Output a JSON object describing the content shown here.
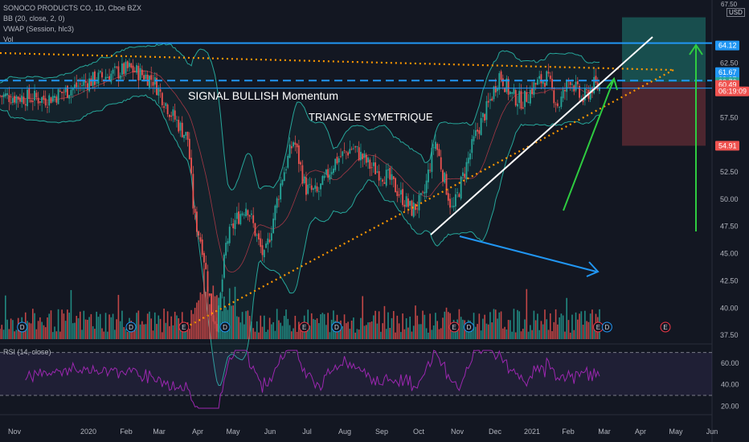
{
  "header": {
    "symbol": "SONOCO PRODUCTS CO, 1D, Cboe BZX",
    "indicators": [
      "BB (20, close, 2, 0)",
      "VWAP (Session, hlc3)",
      "Vol"
    ],
    "currency": "USD"
  },
  "annotations": {
    "signal": "SIGNAL BULLISH Momentum",
    "pattern": "TRIANGLE SYMETRIQUE"
  },
  "rsi": {
    "label": "RSI (14, close)",
    "ticks": [
      "60.00",
      "40.00",
      "20.00"
    ]
  },
  "colors": {
    "background": "#131722",
    "up": "#26a69a",
    "down": "#ef5350",
    "bb": "#26a69a",
    "basis": "#e04050",
    "blue_line": "#2196f3",
    "orange_dots": "#ff9800",
    "green_arrow": "#2ecc40",
    "rsi": "#9c27b0",
    "target_zone": "#1a5c5a",
    "stop_zone": "#5c2a33"
  },
  "chart_data": {
    "type": "candlestick",
    "title": "SONOCO PRODUCTS CO, 1D, Cboe BZX",
    "x_axis_labels": [
      "Nov",
      "2020",
      "Feb",
      "Mar",
      "Apr",
      "May",
      "Jun",
      "Jul",
      "Aug",
      "Sep",
      "Oct",
      "Nov",
      "Dec",
      "2021",
      "Feb",
      "Mar",
      "Apr",
      "May",
      "Jun"
    ],
    "y_axis_ticks": [
      "67.50",
      "62.50",
      "57.50",
      "55.00",
      "52.50",
      "50.00",
      "47.50",
      "45.00",
      "42.50",
      "40.00",
      "37.50"
    ],
    "ylim": [
      37,
      68
    ],
    "price_labels": [
      {
        "value": 64.12,
        "text": "64.12",
        "color": "#2196f3"
      },
      {
        "value": 61.67,
        "text": "61.67",
        "color": "#2196f3"
      },
      {
        "value": 60.97,
        "text": "60.97",
        "color": "#2196f3"
      },
      {
        "value": 60.76,
        "text": "60.76",
        "color": "#26a69a"
      },
      {
        "value": 60.49,
        "text": "60.49",
        "color": "#ef5350"
      },
      {
        "value": 59.9,
        "text": "06:19:09",
        "color": "#ef5350"
      },
      {
        "value": 54.91,
        "text": "54.91",
        "color": "#ef5350"
      }
    ],
    "price_path": [
      [
        0,
        59.5
      ],
      [
        8,
        59.2
      ],
      [
        15,
        60.8
      ],
      [
        22,
        62.0
      ],
      [
        26,
        61.0
      ],
      [
        29,
        58.0
      ],
      [
        32,
        55.5
      ],
      [
        33,
        48.5
      ],
      [
        34.5,
        45.5
      ],
      [
        36,
        39.5
      ],
      [
        37,
        38.5
      ],
      [
        38.5,
        46.0
      ],
      [
        40,
        48.0
      ],
      [
        42,
        49.5
      ],
      [
        44,
        46.0
      ],
      [
        45,
        44.5
      ],
      [
        48,
        52.0
      ],
      [
        50,
        55.5
      ],
      [
        52,
        51.0
      ],
      [
        54,
        50.5
      ],
      [
        57,
        53.5
      ],
      [
        60,
        54.8
      ],
      [
        63,
        53.0
      ],
      [
        66,
        52.0
      ],
      [
        68,
        50.5
      ],
      [
        70,
        49.0
      ],
      [
        72,
        50.0
      ],
      [
        74,
        55.5
      ],
      [
        75.5,
        52.0
      ],
      [
        77,
        48.8
      ],
      [
        79,
        52.5
      ],
      [
        81,
        56.0
      ],
      [
        83,
        58.5
      ],
      [
        85,
        61.5
      ],
      [
        87,
        59.5
      ],
      [
        89,
        59.0
      ],
      [
        91,
        60.5
      ],
      [
        93,
        61.2
      ],
      [
        95,
        58.5
      ],
      [
        97,
        61.2
      ],
      [
        99,
        59.0
      ],
      [
        101,
        60.5
      ],
      [
        102,
        60.2
      ]
    ],
    "target_price": 64.12,
    "stop_price": 54.91,
    "entry_price": 60.76,
    "rsi_range": [
      15,
      75
    ]
  }
}
